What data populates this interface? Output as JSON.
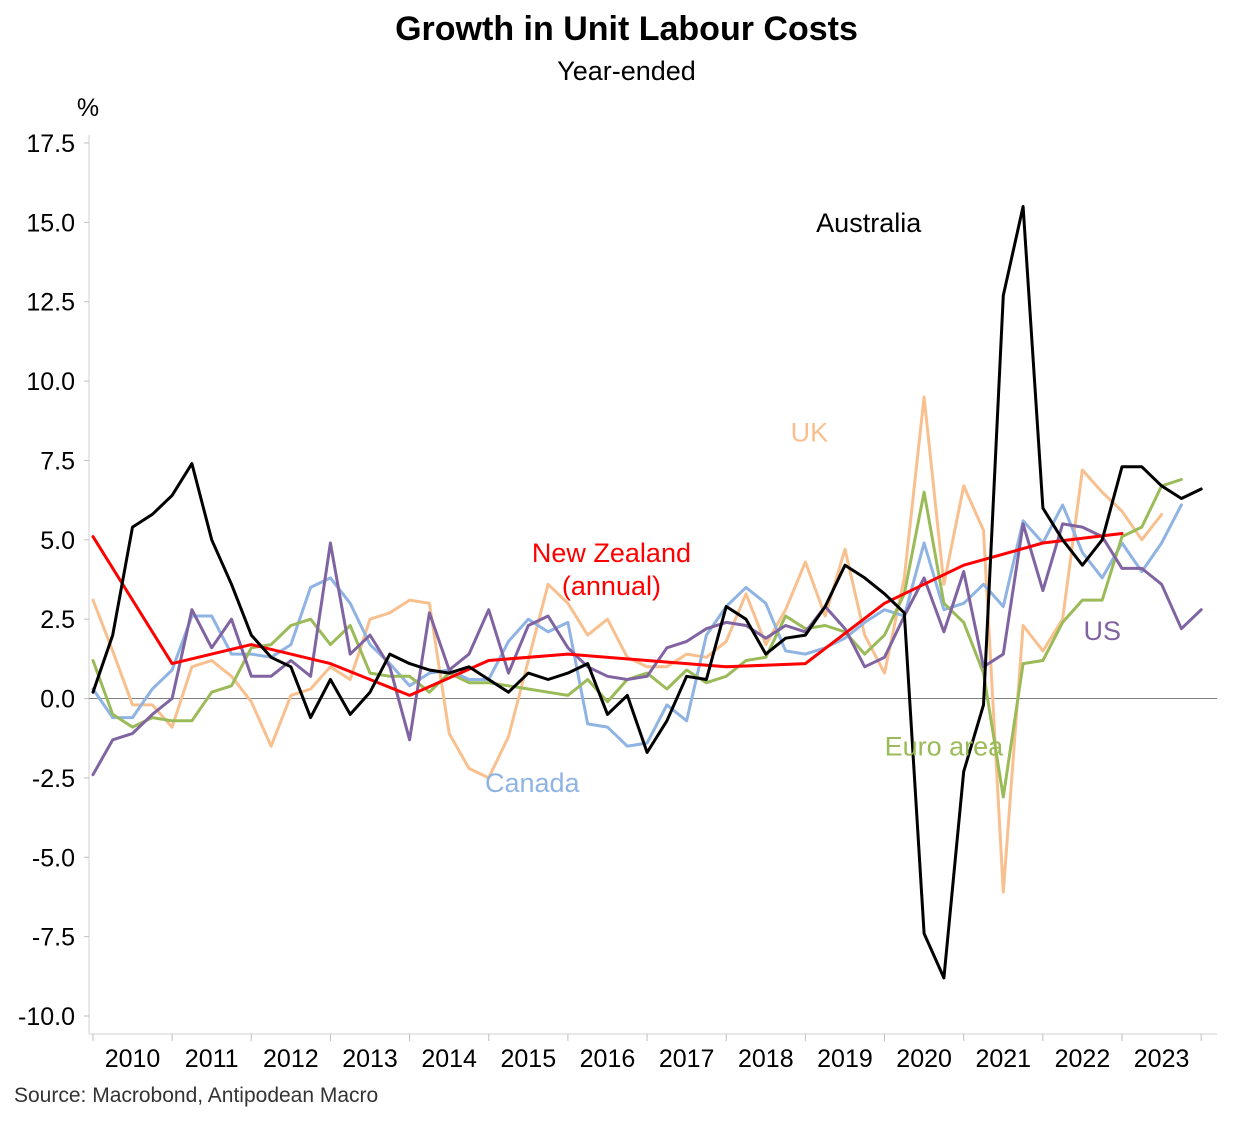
{
  "header": {
    "title": "Growth in Unit Labour Costs",
    "subtitle": "Year-ended"
  },
  "footer": {
    "source": "Source: Macrobond, Antipodean Macro"
  },
  "chart_data": {
    "type": "line",
    "title": "Growth in Unit Labour Costs",
    "subtitle": "Year-ended",
    "ylabel": "%",
    "xlabel": "",
    "ylim": [
      -10.0,
      17.5
    ],
    "xlim": [
      2009.95,
      2024.2
    ],
    "yticks": [
      -10.0,
      -7.5,
      -5.0,
      -2.5,
      0.0,
      2.5,
      5.0,
      7.5,
      10.0,
      12.5,
      15.0,
      17.5
    ],
    "ytick_labels": [
      "-10.0",
      "-7.5",
      "-5.0",
      "-2.5",
      "0.0",
      "2.5",
      "5.0",
      "7.5",
      "10.0",
      "12.5",
      "15.0",
      "17.5"
    ],
    "xtick_labels": [
      "2010",
      "2011",
      "2012",
      "2013",
      "2014",
      "2015",
      "2016",
      "2017",
      "2018",
      "2019",
      "2020",
      "2021",
      "2022",
      "2023"
    ],
    "grid": false,
    "zero_line": true,
    "source": "Source: Macrobond, Antipodean Macro",
    "series": [
      {
        "name": "UK",
        "label": "UK",
        "color": "#f9c08f",
        "label_pos": {
          "x": 2019.05,
          "y": 8.1
        },
        "x_start": 2010.0,
        "step": 0.25,
        "values": [
          3.1,
          1.5,
          -0.2,
          -0.2,
          -0.9,
          1.0,
          1.2,
          0.7,
          -0.1,
          -1.5,
          0.1,
          0.3,
          1.0,
          0.6,
          2.5,
          2.7,
          3.1,
          3.0,
          -1.1,
          -2.2,
          -2.5,
          -1.2,
          1.2,
          3.6,
          3.0,
          2.0,
          2.5,
          1.3,
          1.0,
          1.0,
          1.4,
          1.3,
          1.8,
          3.3,
          1.7,
          2.8,
          4.3,
          2.6,
          4.7,
          2.0,
          0.8,
          3.8,
          9.5,
          3.6,
          6.7,
          5.3,
          -6.1,
          2.3,
          1.5,
          2.5,
          7.2,
          6.5,
          5.9,
          5.0,
          5.8
        ]
      },
      {
        "name": "Canada",
        "label": "Canada",
        "color": "#8fb4e3",
        "label_pos": {
          "x": 2015.55,
          "y": -2.95
        },
        "x_start": 2010.0,
        "step": 0.25,
        "values": [
          0.3,
          -0.6,
          -0.6,
          0.3,
          0.9,
          2.6,
          2.6,
          1.4,
          1.4,
          1.3,
          1.7,
          3.5,
          3.8,
          3.0,
          1.7,
          1.1,
          0.4,
          0.8,
          0.9,
          0.6,
          0.6,
          1.8,
          2.5,
          2.1,
          2.4,
          -0.8,
          -0.9,
          -1.5,
          -1.4,
          -0.2,
          -0.7,
          2.0,
          2.9,
          3.5,
          3.0,
          1.5,
          1.4,
          1.6,
          1.9,
          2.4,
          2.8,
          2.6,
          4.9,
          2.8,
          3.0,
          3.6,
          2.9,
          5.6,
          4.9,
          6.1,
          4.6,
          3.8,
          4.9,
          4.0,
          4.9,
          6.1
        ]
      },
      {
        "name": "Euro area",
        "label": "Euro area",
        "color": "#9bbb59",
        "label_pos": {
          "x": 2020.75,
          "y": -1.8
        },
        "x_start": 2010.0,
        "step": 0.25,
        "values": [
          1.2,
          -0.5,
          -0.9,
          -0.6,
          -0.7,
          -0.7,
          0.2,
          0.4,
          1.6,
          1.7,
          2.3,
          2.5,
          1.7,
          2.3,
          0.8,
          0.7,
          0.7,
          0.2,
          0.8,
          0.5,
          0.5,
          0.4,
          0.3,
          0.2,
          0.1,
          0.6,
          -0.1,
          0.6,
          0.8,
          0.3,
          0.9,
          0.5,
          0.7,
          1.2,
          1.3,
          2.6,
          2.2,
          2.3,
          2.1,
          1.4,
          2.0,
          3.3,
          6.5,
          3.0,
          2.4,
          0.8,
          -3.1,
          1.1,
          1.2,
          2.4,
          3.1,
          3.1,
          5.1,
          5.4,
          6.7,
          6.9
        ]
      },
      {
        "name": "US",
        "label": "US",
        "color": "#8064a2",
        "label_pos": {
          "x": 2022.75,
          "y": 1.85
        },
        "x_start": 2010.0,
        "step": 0.25,
        "values": [
          -2.4,
          -1.3,
          -1.1,
          -0.5,
          0.0,
          2.8,
          1.6,
          2.5,
          0.7,
          0.7,
          1.2,
          0.7,
          4.9,
          1.4,
          2.0,
          1.0,
          -1.3,
          2.7,
          0.9,
          1.4,
          2.8,
          0.8,
          2.3,
          2.6,
          1.6,
          1.0,
          0.7,
          0.6,
          0.7,
          1.6,
          1.8,
          2.2,
          2.4,
          2.3,
          1.9,
          2.3,
          2.1,
          2.9,
          2.2,
          1.0,
          1.3,
          2.6,
          3.8,
          2.1,
          4.0,
          1.0,
          1.4,
          5.5,
          3.4,
          5.5,
          5.4,
          5.1,
          4.1,
          4.1,
          3.6,
          2.2,
          2.8
        ]
      },
      {
        "name": "New Zealand",
        "label": "New Zealand (annual)",
        "label_lines": [
          "New Zealand",
          "(annual)"
        ],
        "color": "#ff0000",
        "label_pos": {
          "x": 2016.55,
          "y": 4.3
        },
        "x_start": 2010.0,
        "step": 1,
        "values": [
          5.1,
          1.1,
          1.7,
          1.1,
          0.1,
          1.2,
          1.4,
          1.2,
          1.0,
          1.1,
          3.0,
          4.2,
          4.9,
          5.2
        ]
      },
      {
        "name": "Australia",
        "label": "Australia",
        "color": "#000000",
        "label_pos": {
          "x": 2019.8,
          "y": 14.7
        },
        "x_start": 2010.0,
        "step": 0.25,
        "values": [
          0.2,
          2.0,
          5.4,
          5.8,
          6.4,
          7.4,
          5.0,
          3.6,
          2.0,
          1.3,
          1.0,
          -0.6,
          0.6,
          -0.5,
          0.2,
          1.4,
          1.1,
          0.9,
          0.8,
          1.0,
          0.6,
          0.2,
          0.8,
          0.6,
          0.8,
          1.1,
          -0.5,
          0.1,
          -1.7,
          -0.7,
          0.7,
          0.6,
          2.9,
          2.5,
          1.4,
          1.9,
          2.0,
          2.9,
          4.2,
          3.8,
          3.3,
          2.7,
          -7.4,
          -8.8,
          -2.3,
          -0.2,
          12.7,
          15.5,
          6.0,
          5.0,
          4.2,
          5.0,
          7.3,
          7.3,
          6.7,
          6.3,
          6.6
        ]
      }
    ]
  }
}
